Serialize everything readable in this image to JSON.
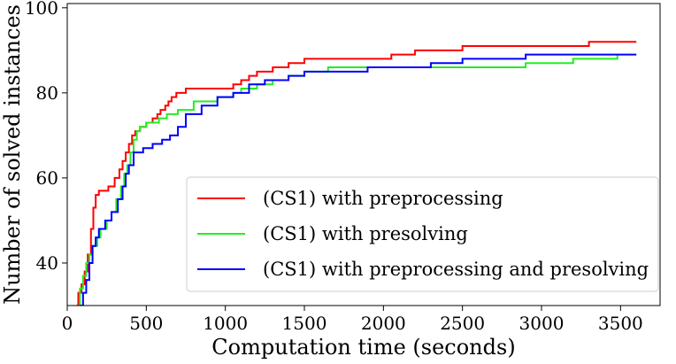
{
  "chart_data": {
    "type": "line",
    "title": "",
    "xlabel": "Computation time (seconds)",
    "ylabel": "Number of solved instances",
    "xlim": [
      0,
      3750
    ],
    "ylim": [
      30,
      101
    ],
    "xticks": [
      0,
      500,
      1000,
      1500,
      2000,
      2500,
      3000,
      3500
    ],
    "yticks": [
      40,
      60,
      80,
      100
    ],
    "grid": false,
    "legend_position": "lower-right",
    "series": [
      {
        "name": "(CS1) with preprocessing",
        "color": "#ff0000",
        "x": [
          60,
          70,
          90,
          110,
          130,
          150,
          165,
          180,
          200,
          220,
          260,
          300,
          330,
          350,
          370,
          390,
          410,
          430,
          460,
          500,
          540,
          570,
          590,
          620,
          640,
          660,
          690,
          750,
          1000,
          1050,
          1100,
          1150,
          1200,
          1250,
          1300,
          1400,
          1500,
          1800,
          2050,
          2200,
          2500,
          3000,
          3300,
          3600
        ],
        "y": [
          30,
          33,
          35,
          38,
          42,
          48,
          53,
          56,
          57,
          57,
          58,
          60,
          62,
          64,
          66,
          68,
          70,
          71,
          72,
          73,
          74,
          75,
          76,
          77,
          78,
          79,
          80,
          81,
          81,
          82,
          83,
          84,
          85,
          85,
          86,
          87,
          88,
          88,
          89,
          90,
          91,
          91,
          92,
          92
        ]
      },
      {
        "name": "(CS1) with presolving",
        "color": "#22ee22",
        "x": [
          70,
          80,
          100,
          120,
          140,
          160,
          190,
          210,
          250,
          280,
          310,
          340,
          360,
          380,
          400,
          420,
          440,
          460,
          500,
          540,
          580,
          630,
          700,
          800,
          950,
          1050,
          1100,
          1200,
          1300,
          1400,
          1500,
          1650,
          1800,
          2300,
          2500,
          2900,
          3200,
          3400,
          3480
        ],
        "y": [
          30,
          34,
          37,
          40,
          42,
          44,
          46,
          48,
          50,
          52,
          55,
          58,
          61,
          63,
          66,
          69,
          71,
          72,
          73,
          73,
          74,
          75,
          76,
          78,
          79,
          80,
          81,
          82,
          83,
          84,
          85,
          86,
          86,
          86,
          86,
          87,
          88,
          88,
          89
        ]
      },
      {
        "name": "(CS1) with preprocessing and presolving",
        "color": "#0000ff",
        "x": [
          80,
          100,
          120,
          140,
          160,
          180,
          200,
          240,
          280,
          320,
          350,
          370,
          390,
          420,
          480,
          540,
          600,
          650,
          700,
          750,
          850,
          950,
          1050,
          1150,
          1250,
          1400,
          1500,
          1900,
          2300,
          2500,
          2900,
          3600
        ],
        "y": [
          30,
          33,
          36,
          40,
          44,
          46,
          48,
          50,
          52,
          55,
          58,
          61,
          63,
          66,
          67,
          68,
          69,
          70,
          72,
          75,
          77,
          79,
          80,
          82,
          83,
          84,
          85,
          86,
          87,
          88,
          89,
          89
        ]
      }
    ]
  }
}
